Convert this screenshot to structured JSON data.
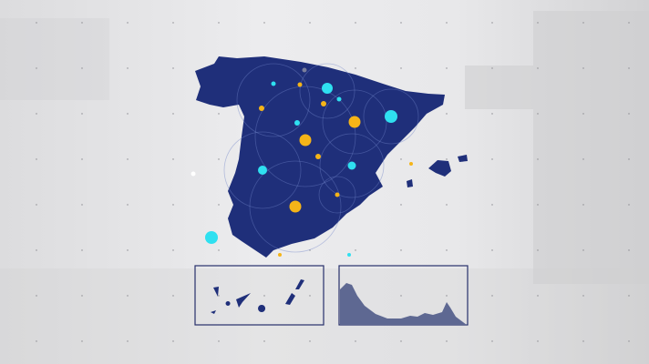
{
  "colors": {
    "land": "#1f2f7a",
    "background": "#e4e4e6",
    "cyan": "#2fe0f0",
    "yellow": "#f5b418",
    "gray": "#7a7f9c",
    "inset_land": "#5e6892",
    "inset_border": "#27306b"
  },
  "map": {
    "region": "Spain",
    "insets": [
      "canary-islands",
      "ceuta-melilla-coast"
    ]
  },
  "markers": {
    "types": [
      "cyan",
      "yellow",
      "gray",
      "white"
    ]
  }
}
